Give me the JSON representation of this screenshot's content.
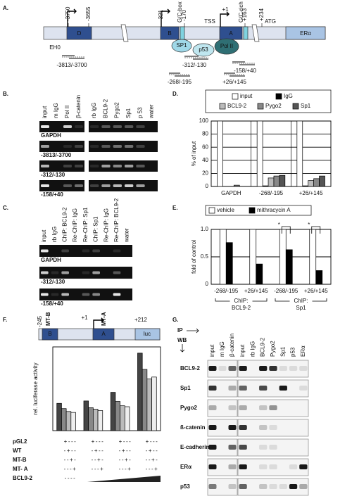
{
  "panel_labels": [
    "A.",
    "B.",
    "C.",
    "D.",
    "E.",
    "F.",
    "G."
  ],
  "panel_a": {
    "positions": [
      "-3750",
      "-3655",
      "-321",
      "-170",
      "+1",
      "+163",
      "+234"
    ],
    "gc_box": "G/C-box",
    "tss": "TSS",
    "gc_rich": "G/C-rich",
    "atg": "ATG",
    "eh0": "EH0",
    "exons": [
      "D",
      "B",
      "A",
      "ERα"
    ],
    "factors": [
      "SP1",
      "p53",
      "Pol II"
    ],
    "primers": [
      "-3813/-3700",
      "-312/-130",
      "-158/+40",
      "-268/-195",
      "+26/+145"
    ]
  },
  "panel_b": {
    "columns_left": [
      "input",
      "m IgG",
      "Pol II",
      "β-catenin"
    ],
    "columns_right": [
      "rb IgG",
      "BCL9-2",
      "Pygo2",
      "Sp1",
      "p 53",
      "water"
    ],
    "rows": [
      "GAPDH",
      "-3813/-3700",
      "-312/-130",
      "-158/+40"
    ]
  },
  "panel_c": {
    "columns": [
      "input",
      "rb IgG",
      "ChIP: BCL9-2",
      "Re-ChIP: IgG",
      "Re-ChIP: Sp1",
      "ChIP: Sp1",
      "Re-ChIP: IgG",
      "Re-ChIP: BCL9-2",
      "water"
    ],
    "rows": [
      "GAPDH",
      "-312/-130",
      "-158/+40"
    ]
  },
  "chart_data": [
    {
      "type": "bar",
      "ylabel": "% of input",
      "categories": [
        "GAPDH",
        "-268/-195",
        "+26/+145"
      ],
      "series": [
        {
          "name": "input",
          "color": "#ffffff",
          "values": [
            100,
            100,
            100
          ]
        },
        {
          "name": "IgG",
          "color": "#000000",
          "values": [
            0,
            1,
            1
          ]
        },
        {
          "name": "BCL9-2",
          "color": "#bbbbbb",
          "values": [
            0,
            13,
            9
          ]
        },
        {
          "name": "Pygo2",
          "color": "#888888",
          "values": [
            2,
            16,
            12
          ]
        },
        {
          "name": "Sp1",
          "color": "#555555",
          "values": [
            0,
            17,
            16
          ]
        }
      ],
      "ylim": [
        0,
        100
      ],
      "yticks": [
        0,
        20,
        40,
        60,
        80,
        100
      ],
      "grid": true
    },
    {
      "type": "bar",
      "ylabel": "fold of control",
      "categories": [
        "-268/-195",
        "+26/+145",
        "-268/-195",
        "+26/+145"
      ],
      "groups": [
        [
          "ChIP:",
          "BCL9-2"
        ],
        [
          "ChIP:",
          "Sp1"
        ]
      ],
      "annotations": [
        "*",
        "*"
      ],
      "series": [
        {
          "name": "vehicle",
          "color": "#ffffff",
          "values": [
            1,
            1,
            1,
            1
          ]
        },
        {
          "name": "mithracycin A",
          "color": "#000000",
          "values": [
            0.76,
            0.37,
            0.63,
            0.25
          ]
        }
      ],
      "ylim": [
        0,
        1
      ],
      "yticks": [
        0,
        0.5,
        {
          "value": 1,
          "label": "1.0"
        }
      ],
      "grid": true
    },
    {
      "type": "bar",
      "ylabel": "rel. luciferase activity",
      "series": [
        {
          "color": "#444444",
          "values": [
            57,
            62,
            80,
            162
          ]
        },
        {
          "color": "#888888",
          "values": [
            46,
            48,
            61,
            128
          ]
        },
        {
          "color": "#bbbbbb",
          "values": [
            40,
            45,
            52,
            108
          ]
        },
        {
          "color": "#eeeeee",
          "values": [
            38,
            42,
            50,
            112
          ]
        }
      ],
      "ylim": [
        0,
        175
      ]
    }
  ],
  "panel_f": {
    "construct": [
      "-245",
      "MT-B",
      "+1",
      "MT-A",
      "+212"
    ],
    "exons": [
      "B",
      "A",
      "luc"
    ],
    "table": [
      {
        "label": "pGL2",
        "cells": [
          "+---",
          "+---",
          "+---",
          "+---"
        ]
      },
      {
        "label": "WT",
        "cells": [
          "-+--",
          "-+--",
          "-+--",
          "-+--"
        ]
      },
      {
        "label": "MT-B",
        "cells": [
          "--+-",
          "--+-",
          "--+-",
          "--+-"
        ]
      },
      {
        "label": "MT- A",
        "cells": [
          "---+",
          "---+",
          "---+",
          "---+"
        ]
      },
      {
        "label": "BCL9-2",
        "cells": [
          "----"
        ]
      }
    ]
  },
  "panel_g": {
    "ip": "IP",
    "wb": "WB",
    "columns_left": [
      "input",
      "m IgG",
      "β-catenin"
    ],
    "columns_right": [
      "input",
      "rb IgG",
      "BCL9-2",
      "Pygo2",
      "Sp1",
      "p53",
      "ERα"
    ],
    "rows": [
      "BCL9-2",
      "Sp1",
      "Pygo2",
      "ß-catenin",
      "E-cadherin",
      "ERα",
      "p53"
    ]
  }
}
